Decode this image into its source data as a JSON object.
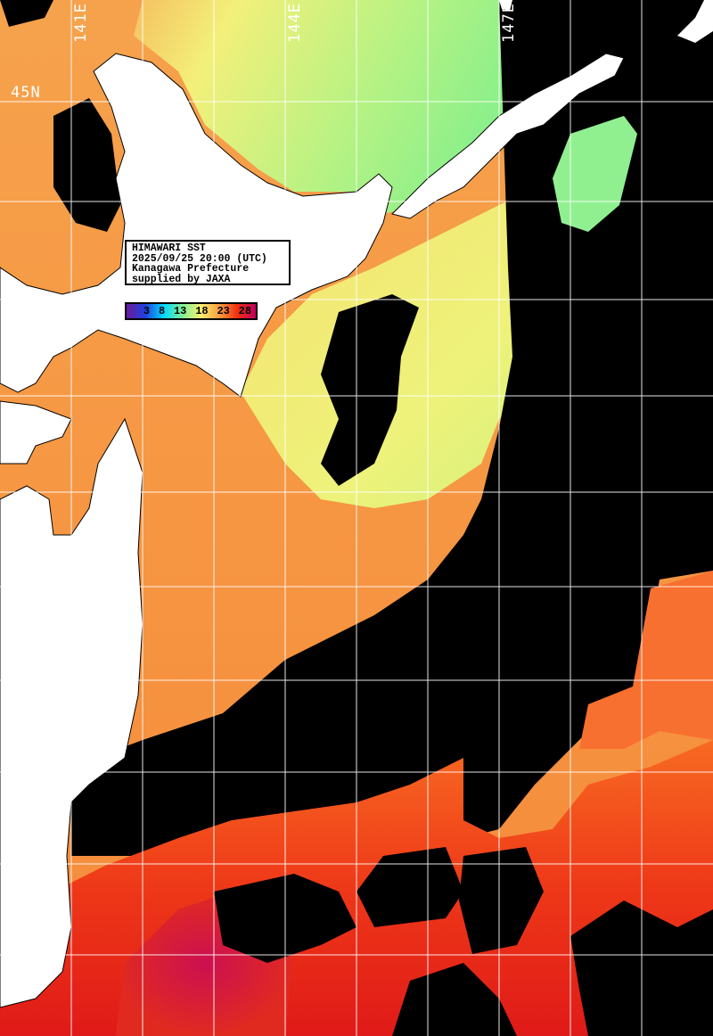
{
  "infobox": {
    "line1": "HIMAWARI SST",
    "line2": "2025/09/25 20:00 (UTC)",
    "line3": "Kanagawa Prefecture",
    "line4": "supplied by JAXA"
  },
  "colorbar": {
    "ticks": [
      "3",
      "8",
      "13",
      "18",
      "23",
      "28"
    ],
    "colors": [
      "#6a1b9a",
      "#2040e0",
      "#00d8ff",
      "#7cf09a",
      "#f8f070",
      "#f8a040",
      "#f03010",
      "#c00060"
    ]
  },
  "grid_labels": {
    "lat": [
      "45N"
    ],
    "lon": [
      "141E",
      "144E",
      "147E"
    ]
  },
  "colors": {
    "land": "#ffffff",
    "cloud": "#000000",
    "grid": "#ffffff",
    "cold_water": "#a8f080",
    "mid_water": "#f2f078",
    "warm_water": "#f59a45",
    "hot_water": "#e8281a"
  }
}
